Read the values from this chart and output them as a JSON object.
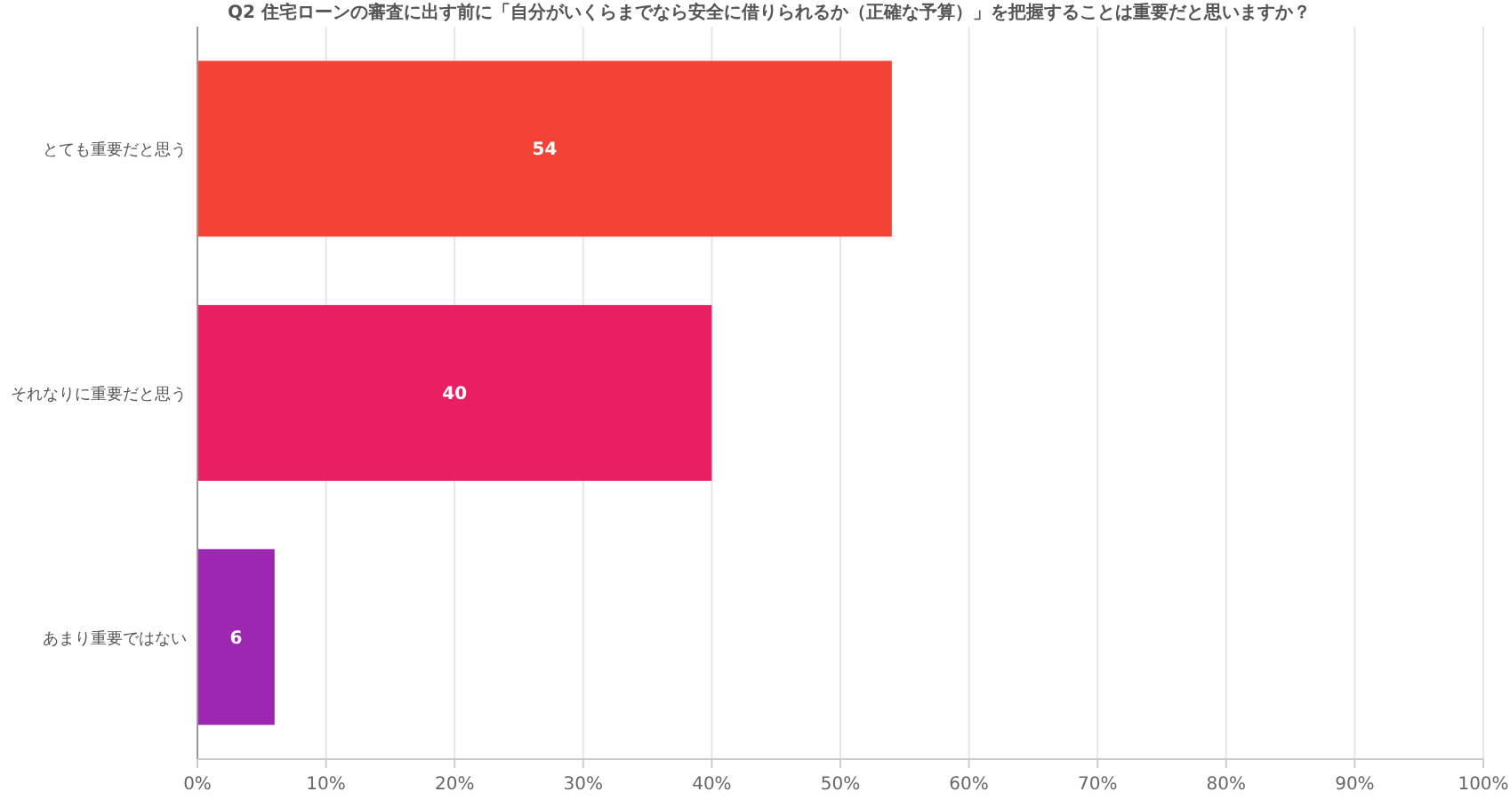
{
  "chart_data": {
    "type": "bar",
    "orientation": "horizontal",
    "title": "Q2 住宅ローンの審査に出す前に「自分がいくらまでなら安全に借りられるか（正確な予算）」を把握することは重要だと思いますか？",
    "categories": [
      "とても重要だと思う",
      "それなりに重要だと思う",
      "あまり重要ではない"
    ],
    "values": [
      54,
      40,
      6
    ],
    "colors": [
      "#f44336",
      "#e91e63",
      "#9c27b0"
    ],
    "xlim": [
      0,
      100
    ],
    "xticks": [
      {
        "value": 0,
        "label": "0%"
      },
      {
        "value": 10,
        "label": "10%"
      },
      {
        "value": 20,
        "label": "20%"
      },
      {
        "value": 30,
        "label": "30%"
      },
      {
        "value": 40,
        "label": "40%"
      },
      {
        "value": 50,
        "label": "50%"
      },
      {
        "value": 60,
        "label": "60%"
      },
      {
        "value": 70,
        "label": "70%"
      },
      {
        "value": 80,
        "label": "80%"
      },
      {
        "value": 90,
        "label": "90%"
      },
      {
        "value": 100,
        "label": "100%"
      }
    ],
    "grid": "x",
    "data_labels": true
  }
}
